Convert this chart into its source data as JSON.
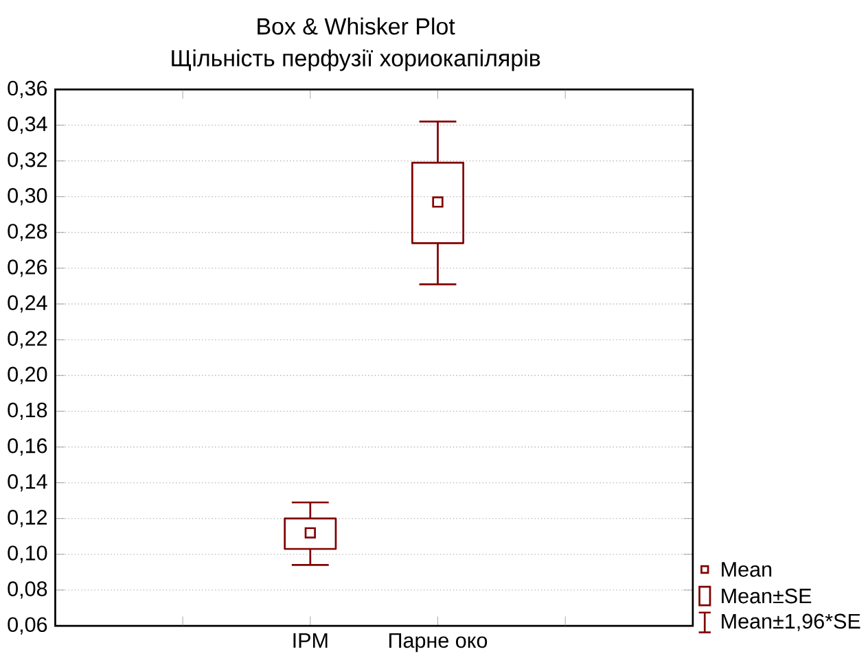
{
  "chart_data": {
    "type": "box",
    "title": "Box & Whisker Plot",
    "subtitle": "Щільність перфузії хориокапілярів",
    "categories": [
      "IPM",
      "Парне око"
    ],
    "boxes": [
      {
        "low": 0.094,
        "q1": 0.103,
        "q3": 0.12,
        "high": 0.129,
        "mean": 0.112
      },
      {
        "low": 0.251,
        "q1": 0.274,
        "q3": 0.319,
        "high": 0.342,
        "mean": 0.297
      }
    ],
    "color": "#800000",
    "ylim": [
      0.06,
      0.36
    ],
    "yticks": [
      {
        "value": 0.06,
        "label": "0,06"
      },
      {
        "value": 0.08,
        "label": "0,08"
      },
      {
        "value": 0.1,
        "label": "0,10"
      },
      {
        "value": 0.12,
        "label": "0,12"
      },
      {
        "value": 0.14,
        "label": "0,14"
      },
      {
        "value": 0.16,
        "label": "0,16"
      },
      {
        "value": 0.18,
        "label": "0,18"
      },
      {
        "value": 0.2,
        "label": "0,20"
      },
      {
        "value": 0.22,
        "label": "0,22"
      },
      {
        "value": 0.24,
        "label": "0,24"
      },
      {
        "value": 0.26,
        "label": "0,26"
      },
      {
        "value": 0.28,
        "label": "0,28"
      },
      {
        "value": 0.3,
        "label": "0,30"
      },
      {
        "value": 0.32,
        "label": "0,32"
      },
      {
        "value": 0.34,
        "label": "0,34"
      },
      {
        "value": 0.36,
        "label": "0,36"
      }
    ],
    "grid": "y",
    "marker": "square",
    "annotations": [
      "Mean",
      "Mean±SE",
      "Mean±1,96*SE"
    ]
  }
}
